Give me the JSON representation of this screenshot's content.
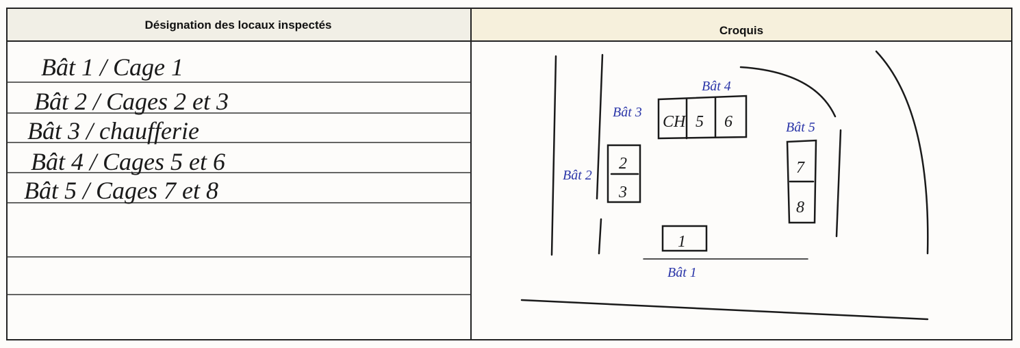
{
  "header": {
    "col1": "Désignation des locaux inspectés",
    "col2": "Croquis"
  },
  "rows": [
    "Bât 1 / Cage 1",
    "Bât 2 / Cages 2 et 3",
    "Bât 3 / chaufferie",
    "Bât 4 / Cages 5 et 6",
    "Bât 5 / Cages 7 et 8"
  ],
  "sketch": {
    "bat1": "Bât 1",
    "bat2": "Bât 2",
    "bat3": "Bât 3",
    "bat4": "Bât 4",
    "bat5": "Bât 5",
    "cells": [
      "CH",
      "5",
      "6",
      "2",
      "3",
      "7",
      "8",
      "1"
    ]
  }
}
